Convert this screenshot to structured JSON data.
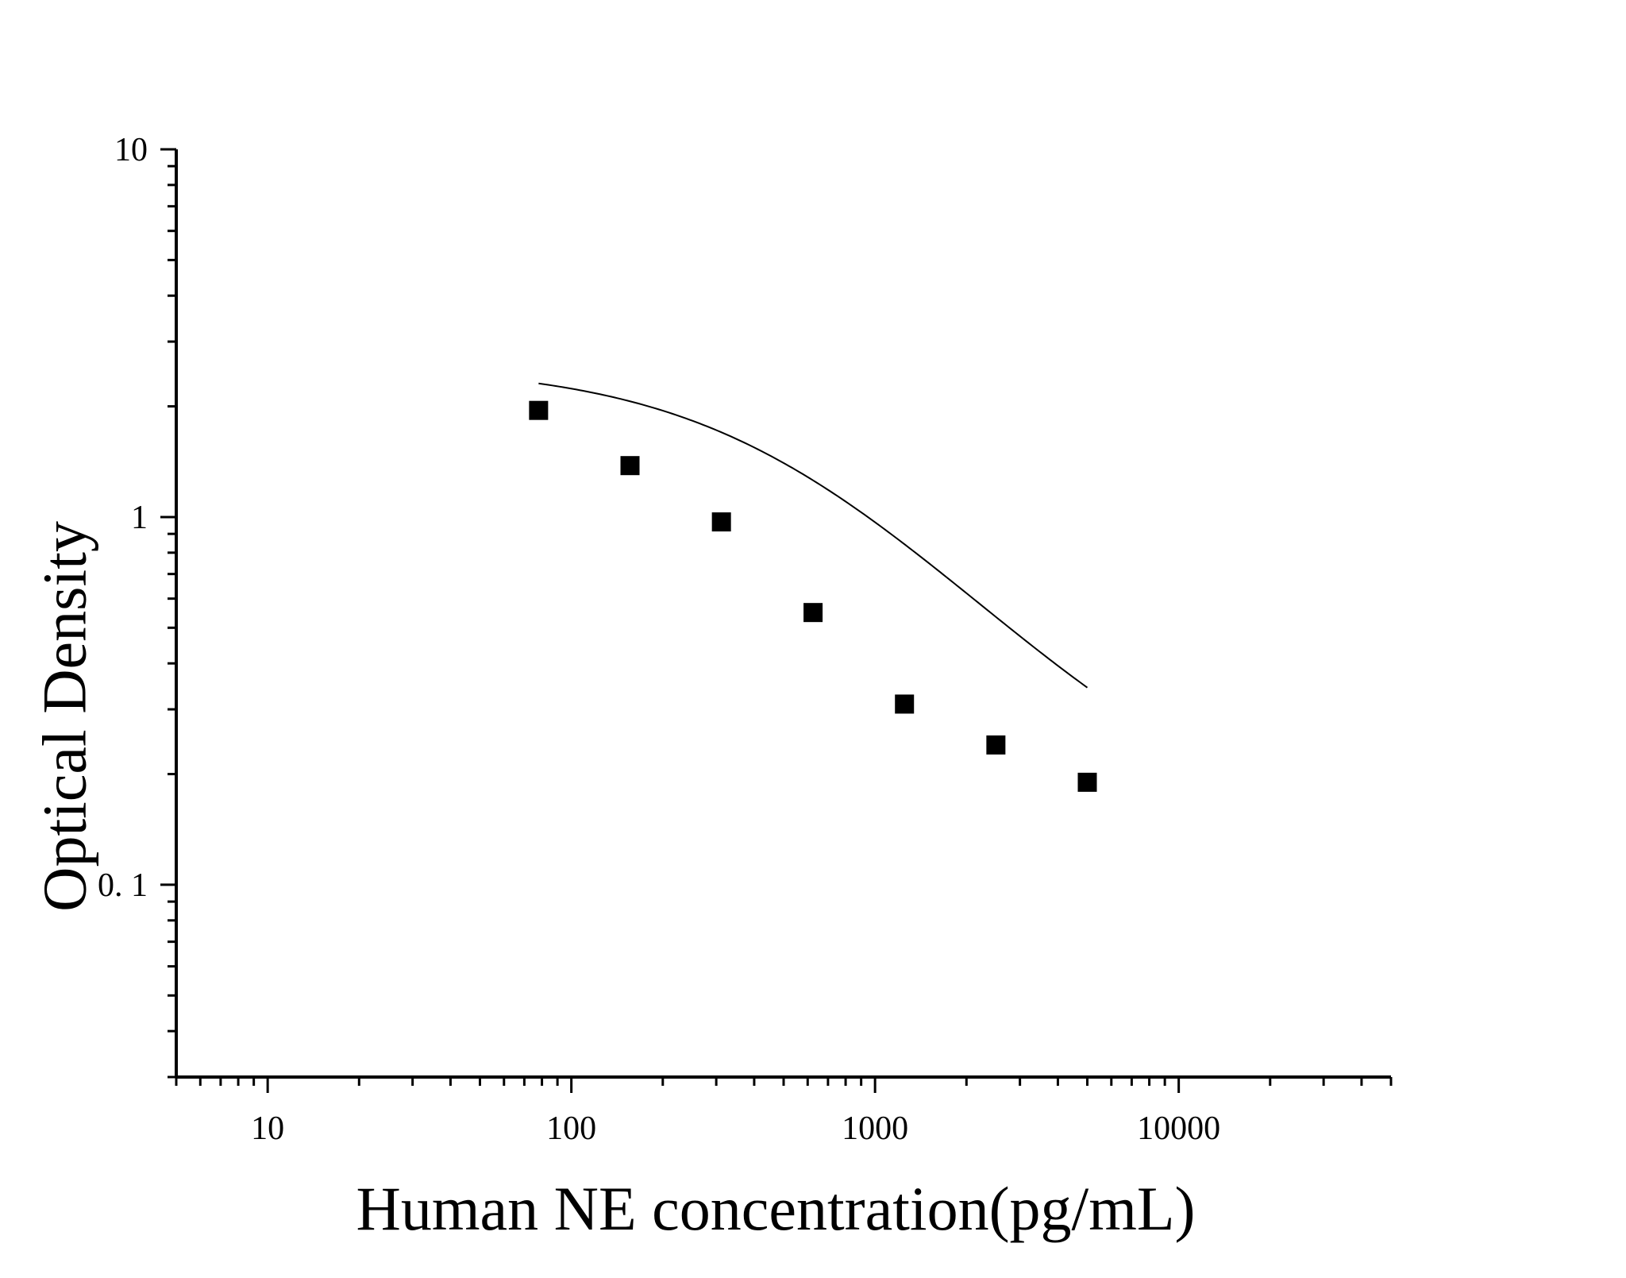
{
  "chart_data": {
    "type": "scatter",
    "title": "",
    "xlabel": "Human NE concentration(pg/mL)",
    "ylabel": "Optical Density",
    "x_scale": "log",
    "y_scale": "log",
    "xlim": [
      5,
      50000
    ],
    "ylim": [
      0.03,
      10
    ],
    "x_ticks": [
      {
        "value": 10,
        "label": "10"
      },
      {
        "value": 100,
        "label": "100"
      },
      {
        "value": 1000,
        "label": "1000"
      },
      {
        "value": 10000,
        "label": "10000"
      }
    ],
    "y_ticks": [
      {
        "value": 0.1,
        "label": "0. 1"
      },
      {
        "value": 1,
        "label": "1"
      },
      {
        "value": 10,
        "label": "10"
      }
    ],
    "grid": false,
    "legend": "none",
    "colors": {
      "marker": "#000000",
      "curve": "#000000",
      "axis": "#000000"
    },
    "series": [
      {
        "marker": "square",
        "x": [
          78,
          156,
          312,
          625,
          1250,
          2500,
          5000
        ],
        "y": [
          1.95,
          1.38,
          0.97,
          0.55,
          0.31,
          0.24,
          0.19
        ]
      }
    ],
    "fit_curve": {
      "type": "4PL",
      "A": 2.6,
      "B": 1.05,
      "C": 530,
      "D": 0.13,
      "x_range": [
        78,
        5000
      ]
    }
  }
}
